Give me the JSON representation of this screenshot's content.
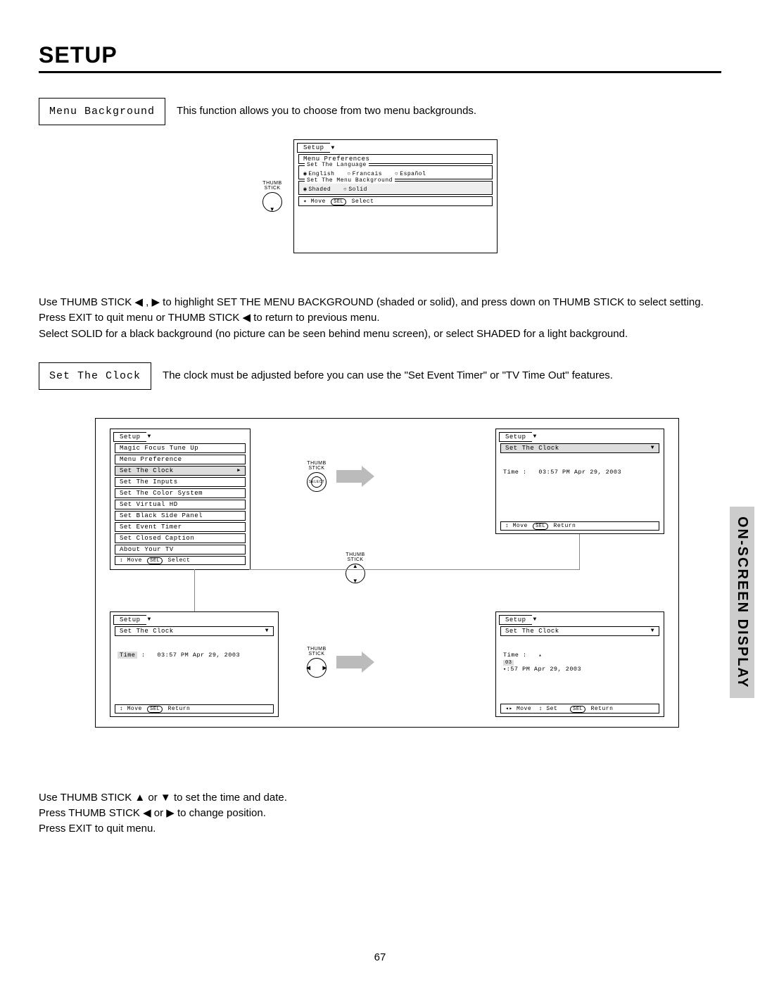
{
  "title": "SETUP",
  "section1": {
    "label": "Menu Background",
    "desc": "This function allows you to choose from two menu backgrounds."
  },
  "osd1": {
    "tab": "Setup",
    "header": "Menu Preferences",
    "group1_title": "Set The Language",
    "lang1": "English",
    "lang2": "Francais",
    "lang3": "Español",
    "group2_title": "Set The Menu Background",
    "bg1": "Shaded",
    "bg2": "Solid",
    "hint_move": "Move",
    "hint_sel": "SEL",
    "hint_select": "Select"
  },
  "thumbstick_label": "THUMB\nSTICK",
  "para1": {
    "l1a": "Use THUMB STICK ◀ , ▶ to highlight SET THE MENU BACKGROUND (shaded or solid), and press down on THUMB STICK to select setting.",
    "l2": "Press EXIT to quit menu or THUMB STICK ◀ to return to previous menu.",
    "l3": "Select SOLID for a black background (no picture can be seen behind menu screen), or select SHADED for a light background."
  },
  "section2": {
    "label": "Set The Clock",
    "desc": "The clock must be adjusted before you can use the \"Set Event Timer\" or \"TV Time Out\" features."
  },
  "setup_menu": {
    "tab": "Setup",
    "items": [
      "Magic Focus Tune Up",
      "Menu Preference",
      "Set The Clock",
      "Set The Inputs",
      "Set The Color System",
      "Set Virtual HD",
      "Set Black Side Panel",
      "Set Event Timer",
      "Set Closed Caption",
      "About Your TV"
    ],
    "highlight_index": 2,
    "hint_move": "Move",
    "hint_sel": "SEL",
    "hint_select": "Select"
  },
  "clock": {
    "tab": "Setup",
    "header": "Set The Clock",
    "time_label": "Time",
    "time_value": "03:57 PM Apr 29, 2003",
    "hint_move": "Move",
    "hint_set": "Set",
    "hint_sel": "SEL",
    "hint_return": "Return"
  },
  "para2": {
    "l1": "Use THUMB STICK ▲ or ▼ to set the time and date.",
    "l2": "Press THUMB STICK ◀ or ▶ to change position.",
    "l3": "Press EXIT to quit menu."
  },
  "side_tab": "ON-SCREEN DISPLAY",
  "page_number": "67"
}
